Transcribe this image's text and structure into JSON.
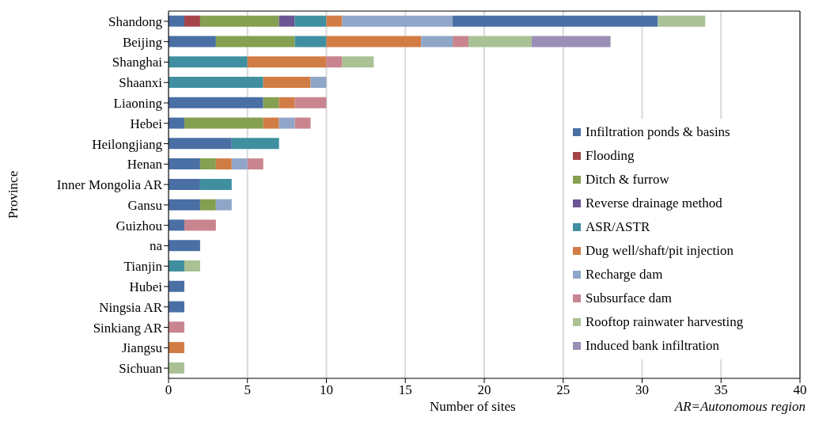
{
  "chart_data": {
    "type": "bar",
    "orientation": "horizontal",
    "stacked": true,
    "xlabel": "Number of sites",
    "ylabel": "Province",
    "categories": [
      "Shandong",
      "Beijing",
      "Shanghai",
      "Shaanxi",
      "Liaoning",
      "Hebei",
      "Heilongjiang",
      "Henan",
      "Inner Mongolia AR",
      "Gansu",
      "Guizhou",
      "na",
      "Tianjin",
      "Hubei",
      "Ningsia AR",
      "Sinkiang AR",
      "Jiangsu",
      "Sichuan"
    ],
    "series": [
      {
        "name": "Infiltration ponds & basins",
        "color": "#4a6fa5",
        "values": [
          1,
          3,
          null,
          null,
          6,
          1,
          4,
          2,
          2,
          2,
          1,
          2,
          null,
          1,
          1,
          null,
          null,
          null
        ]
      },
      {
        "name": "Flooding",
        "color": "#a5444a",
        "values": [
          1,
          null,
          null,
          null,
          null,
          null,
          null,
          null,
          null,
          null,
          null,
          null,
          null,
          null,
          null,
          null,
          null,
          null
        ]
      },
      {
        "name": "Ditch & furrow",
        "color": "#84a050",
        "values": [
          5,
          5,
          null,
          null,
          1,
          5,
          null,
          1,
          null,
          1,
          null,
          null,
          null,
          null,
          null,
          null,
          null,
          null
        ]
      },
      {
        "name": "Reverse drainage method",
        "color": "#6b5595",
        "values": [
          1,
          null,
          null,
          null,
          null,
          null,
          null,
          null,
          null,
          null,
          null,
          null,
          null,
          null,
          null,
          null,
          null,
          null
        ]
      },
      {
        "name": "ASR/ASTR",
        "color": "#3f8fa0",
        "values": [
          2,
          2,
          5,
          6,
          null,
          null,
          3,
          null,
          2,
          null,
          null,
          null,
          1,
          null,
          null,
          null,
          null,
          null
        ]
      },
      {
        "name": "Dug well/shaft/pit injection",
        "color": "#d27c45",
        "values": [
          1,
          6,
          5,
          3,
          1,
          1,
          null,
          1,
          null,
          null,
          null,
          null,
          null,
          null,
          null,
          null,
          1,
          null
        ]
      },
      {
        "name": "Recharge dam",
        "color": "#8fa6c9",
        "values": [
          7,
          2,
          null,
          1,
          null,
          1,
          null,
          1,
          null,
          1,
          null,
          null,
          null,
          null,
          null,
          null,
          null,
          null
        ]
      },
      {
        "color": "#4a6fa5",
        "values": [
          13,
          null,
          null,
          null,
          null,
          null,
          null,
          null,
          null,
          null,
          null,
          null,
          null,
          null,
          null,
          null,
          null,
          null
        ]
      },
      {
        "name": "Subsurface dam",
        "color": "#c8858f",
        "values": [
          null,
          1,
          1,
          null,
          2,
          1,
          null,
          1,
          null,
          null,
          2,
          null,
          null,
          null,
          null,
          1,
          null,
          null
        ]
      },
      {
        "name": "Rooftop rainwater harvesting",
        "color": "#a9c194",
        "values": [
          3,
          4,
          2,
          null,
          null,
          null,
          null,
          null,
          null,
          null,
          null,
          null,
          1,
          null,
          null,
          null,
          null,
          1
        ]
      },
      {
        "name": "Induced bank infiltration",
        "color": "#9b8fb5",
        "values": [
          null,
          5,
          null,
          null,
          null,
          null,
          null,
          null,
          null,
          null,
          null,
          null,
          null,
          null,
          null,
          null,
          null,
          null
        ]
      }
    ],
    "xlim": [
      0,
      40
    ],
    "xticks": [
      0,
      5,
      10,
      15,
      20,
      25,
      30,
      35,
      40
    ],
    "grid": "x",
    "legend": "bottom right",
    "annotations": [
      "AR=Autonomous region"
    ]
  }
}
